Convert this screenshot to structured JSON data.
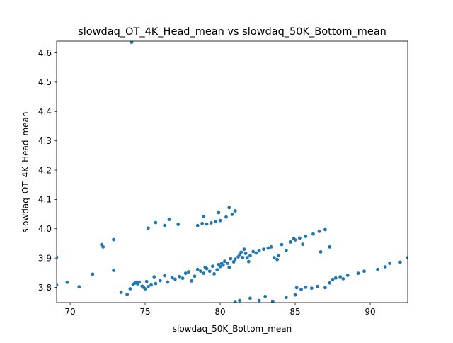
{
  "chart_data": {
    "type": "scatter",
    "title": "slowdaq_OT_4K_Head_mean vs slowdaq_50K_Bottom_mean",
    "xlabel": "slowdaq_50K_Bottom_mean",
    "ylabel": "slowdaq_OT_4K_Head_mean",
    "xlim": [
      69.1,
      92.5
    ],
    "ylim": [
      3.748,
      4.64
    ],
    "xticks": [
      70,
      75,
      80,
      85,
      90
    ],
    "yticks": [
      3.8,
      3.9,
      4.0,
      4.1,
      4.2,
      4.3,
      4.4,
      4.5,
      4.6
    ],
    "grid": false,
    "marker_color": "#1f77b4",
    "points": [
      [
        74.1,
        4.636
      ],
      [
        69.1,
        3.903
      ],
      [
        69.1,
        3.808
      ],
      [
        69.8,
        3.817
      ],
      [
        70.6,
        3.802
      ],
      [
        71.5,
        3.845
      ],
      [
        72.1,
        3.946
      ],
      [
        72.2,
        3.938
      ],
      [
        72.9,
        3.963
      ],
      [
        72.9,
        3.858
      ],
      [
        73.4,
        3.783
      ],
      [
        73.8,
        3.776
      ],
      [
        74.0,
        3.795
      ],
      [
        74.2,
        3.81
      ],
      [
        74.3,
        3.814
      ],
      [
        74.4,
        3.816
      ],
      [
        74.5,
        3.812
      ],
      [
        74.6,
        3.818
      ],
      [
        74.8,
        3.804
      ],
      [
        74.9,
        3.8
      ],
      [
        75.0,
        3.795
      ],
      [
        75.1,
        3.82
      ],
      [
        75.2,
        3.802
      ],
      [
        75.4,
        3.808
      ],
      [
        75.6,
        3.836
      ],
      [
        75.7,
        3.813
      ],
      [
        76.0,
        3.823
      ],
      [
        76.3,
        3.84
      ],
      [
        76.5,
        3.818
      ],
      [
        76.8,
        3.833
      ],
      [
        77.0,
        3.828
      ],
      [
        77.3,
        3.837
      ],
      [
        77.5,
        3.831
      ],
      [
        77.7,
        3.848
      ],
      [
        77.9,
        3.853
      ],
      [
        78.1,
        3.822
      ],
      [
        78.3,
        3.838
      ],
      [
        78.5,
        3.861
      ],
      [
        78.7,
        3.855
      ],
      [
        78.9,
        3.848
      ],
      [
        79.0,
        3.868
      ],
      [
        79.1,
        3.864
      ],
      [
        79.3,
        3.855
      ],
      [
        79.5,
        3.872
      ],
      [
        79.6,
        3.846
      ],
      [
        79.8,
        3.86
      ],
      [
        79.9,
        3.878
      ],
      [
        80.0,
        3.871
      ],
      [
        80.1,
        3.882
      ],
      [
        80.2,
        3.876
      ],
      [
        80.3,
        3.889
      ],
      [
        80.5,
        3.882
      ],
      [
        80.7,
        3.898
      ],
      [
        80.6,
        3.868
      ],
      [
        80.9,
        3.887
      ],
      [
        81.0,
        3.896
      ],
      [
        81.2,
        3.904
      ],
      [
        81.3,
        3.912
      ],
      [
        81.4,
        3.92
      ],
      [
        81.5,
        3.902
      ],
      [
        81.6,
        3.93
      ],
      [
        81.7,
        3.916
      ],
      [
        81.8,
        3.901
      ],
      [
        81.9,
        3.888
      ],
      [
        82.0,
        3.908
      ],
      [
        82.2,
        3.922
      ],
      [
        82.4,
        3.917
      ],
      [
        82.6,
        3.925
      ],
      [
        82.9,
        3.93
      ],
      [
        83.2,
        3.934
      ],
      [
        83.4,
        3.938
      ],
      [
        83.6,
        3.901
      ],
      [
        83.9,
        3.909
      ],
      [
        84.1,
        3.946
      ],
      [
        84.4,
        3.926
      ],
      [
        84.7,
        3.955
      ],
      [
        85.0,
        3.962
      ],
      [
        85.3,
        3.968
      ],
      [
        85.7,
        3.974
      ],
      [
        86.2,
        3.982
      ],
      [
        86.6,
        3.991
      ],
      [
        87.0,
        3.997
      ],
      [
        87.3,
        3.938
      ],
      [
        86.7,
        3.921
      ],
      [
        85.5,
        3.947
      ],
      [
        84.9,
        3.967
      ],
      [
        83.8,
        3.895
      ],
      [
        75.2,
        4.002
      ],
      [
        75.7,
        4.021
      ],
      [
        76.3,
        4.011
      ],
      [
        76.6,
        4.032
      ],
      [
        77.2,
        4.015
      ],
      [
        78.5,
        4.011
      ],
      [
        78.8,
        4.018
      ],
      [
        79.1,
        4.016
      ],
      [
        79.4,
        4.02
      ],
      [
        79.7,
        4.024
      ],
      [
        80.0,
        4.028
      ],
      [
        80.4,
        4.04
      ],
      [
        80.8,
        4.049
      ],
      [
        81.0,
        4.061
      ],
      [
        80.6,
        4.072
      ],
      [
        79.9,
        4.055
      ],
      [
        78.9,
        4.042
      ],
      [
        81.0,
        3.749
      ],
      [
        81.3,
        3.755
      ],
      [
        82.0,
        3.763
      ],
      [
        82.6,
        3.755
      ],
      [
        83.0,
        3.769
      ],
      [
        83.5,
        3.752
      ],
      [
        84.4,
        3.766
      ],
      [
        85.0,
        3.774
      ],
      [
        85.1,
        3.799
      ],
      [
        85.4,
        3.793
      ],
      [
        85.7,
        3.8
      ],
      [
        86.1,
        3.797
      ],
      [
        86.5,
        3.803
      ],
      [
        87.0,
        3.799
      ],
      [
        87.3,
        3.815
      ],
      [
        87.5,
        3.827
      ],
      [
        87.7,
        3.832
      ],
      [
        88.0,
        3.836
      ],
      [
        88.2,
        3.829
      ],
      [
        88.5,
        3.841
      ],
      [
        89.2,
        3.848
      ],
      [
        89.6,
        3.855
      ],
      [
        90.5,
        3.861
      ],
      [
        91.0,
        3.87
      ],
      [
        91.3,
        3.882
      ],
      [
        92.0,
        3.886
      ],
      [
        92.5,
        3.901
      ]
    ]
  }
}
